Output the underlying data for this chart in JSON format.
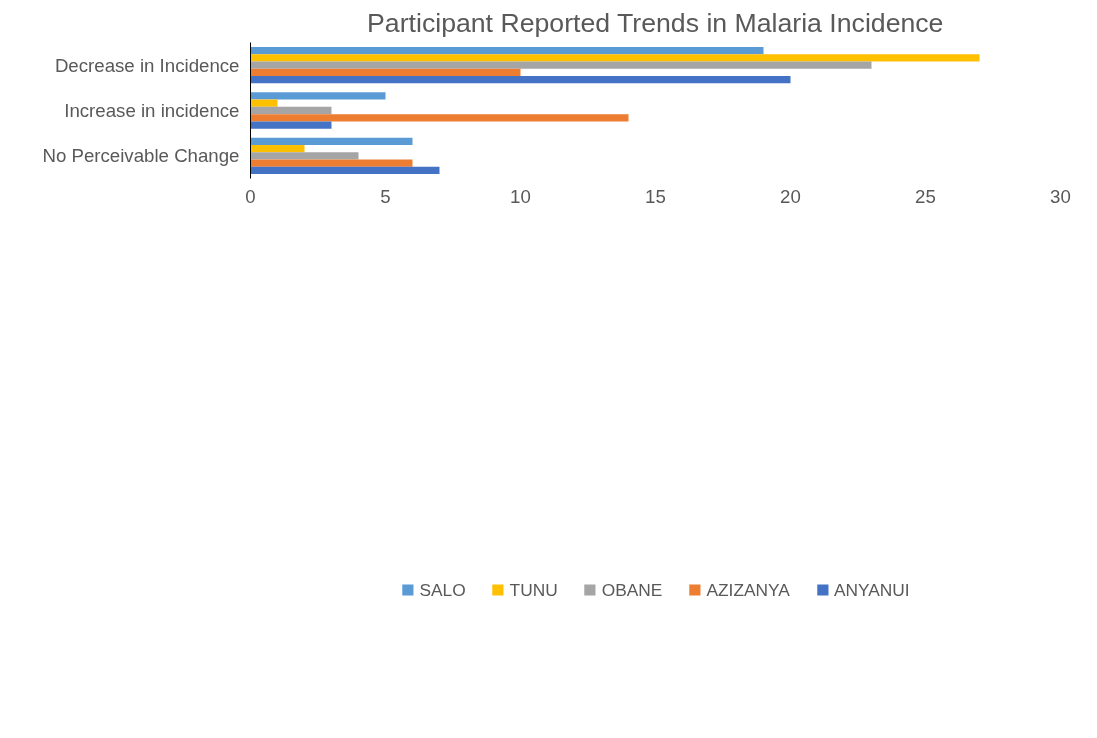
{
  "chart_data": {
    "type": "bar",
    "orientation": "horizontal",
    "title": "Participant Reported Trends in Malaria Incidence",
    "categories": [
      "Decrease in Incidence",
      "Increase in incidence",
      "No Perceivable Change"
    ],
    "series": [
      {
        "name": "SALO",
        "color": "#5b9bd5",
        "values": [
          19,
          5,
          6
        ]
      },
      {
        "name": "TUNU",
        "color": "#ffc000",
        "values": [
          27,
          1,
          2
        ]
      },
      {
        "name": "OBANE",
        "color": "#a5a5a5",
        "values": [
          23,
          3,
          4
        ]
      },
      {
        "name": "AZIZANYA",
        "color": "#ed7d31",
        "values": [
          10,
          14,
          6
        ]
      },
      {
        "name": "ANYANUI",
        "color": "#4472c4",
        "values": [
          20,
          3,
          7
        ]
      }
    ],
    "xlim": [
      0,
      30
    ],
    "xticks": [
      0,
      5,
      10,
      15,
      20,
      25,
      30
    ],
    "grid": false,
    "legend": "bottom"
  }
}
